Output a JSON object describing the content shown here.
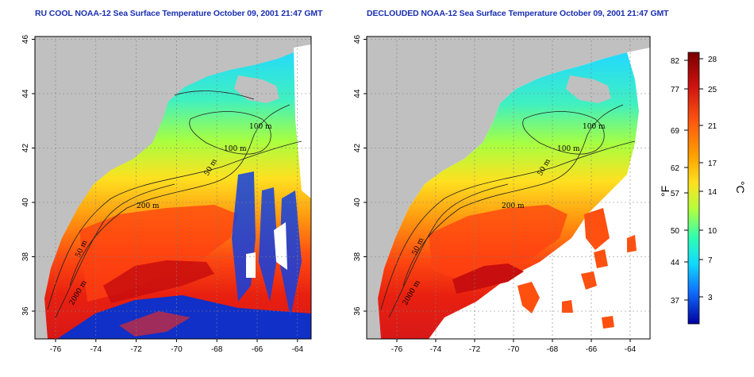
{
  "titles": {
    "left": "RU COOL NOAA-12 Sea Surface Temperature October 09, 2001 21:47 GMT",
    "right": "DECLOUDED NOAA-12 Sea Surface Temperature October 09, 2001 21:47 GMT"
  },
  "axes": {
    "lon_ticks": [
      "-76",
      "-74",
      "-72",
      "-70",
      "-68",
      "-66",
      "-64"
    ],
    "lat_ticks": [
      "36",
      "38",
      "40",
      "42",
      "44",
      "46"
    ]
  },
  "contours": {
    "labels": [
      "100 m",
      "100 m",
      "50 m",
      "200 m",
      "50 m",
      "2000 m"
    ]
  },
  "colorbar": {
    "fahrenheit_unit": "°F",
    "celsius_unit": "°C",
    "fahrenheit_ticks": [
      "82",
      "77",
      "69",
      "62",
      "57",
      "50",
      "44",
      "37"
    ],
    "celsius_ticks": [
      "28",
      "25",
      "21",
      "17",
      "14",
      "10",
      "7",
      "3"
    ]
  },
  "colors": {
    "land": "#c0c0c0",
    "cloud": "#ffffff",
    "title": "#1a2fb0"
  }
}
